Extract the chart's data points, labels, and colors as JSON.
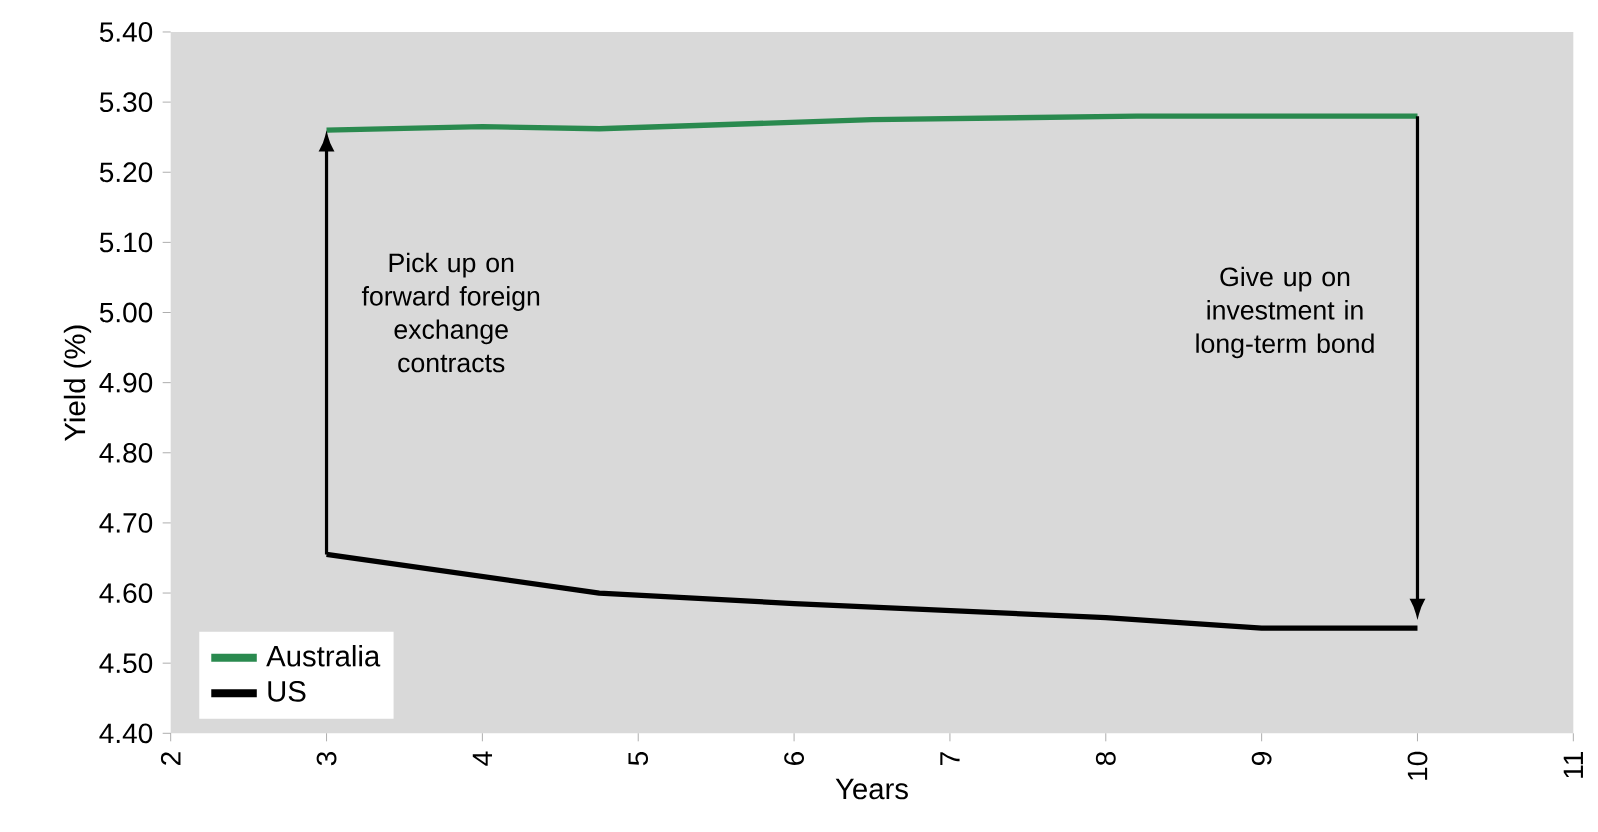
{
  "chart_data": {
    "type": "line",
    "xlabel": "Years",
    "ylabel": "Yield (%)",
    "xlim": [
      2,
      11
    ],
    "xticks": [
      2,
      3,
      4,
      5,
      6,
      7,
      8,
      9,
      10,
      11
    ],
    "ylim": [
      4.4,
      5.4
    ],
    "yticks": [
      {
        "value": 4.4,
        "label": "4.40"
      },
      {
        "value": 4.5,
        "label": "4.50"
      },
      {
        "value": 4.6,
        "label": "4.60"
      },
      {
        "value": 4.7,
        "label": "4.70"
      },
      {
        "value": 4.8,
        "label": "4.80"
      },
      {
        "value": 4.9,
        "label": "4.90"
      },
      {
        "value": 5.0,
        "label": "5.00"
      },
      {
        "value": 5.1,
        "label": "5.10"
      },
      {
        "value": 5.2,
        "label": "5.20"
      },
      {
        "value": 5.3,
        "label": "5.30"
      },
      {
        "value": 5.4,
        "label": "5.40"
      }
    ],
    "grid": false,
    "legend": "bottom left",
    "marker": "none",
    "line_style": "solid",
    "series": [
      {
        "name": "Australia",
        "color": "#2a8a4f",
        "x": [
          3,
          4,
          4.75,
          6.5,
          8.2,
          10
        ],
        "values": [
          5.26,
          5.265,
          5.262,
          5.275,
          5.28,
          5.28
        ]
      },
      {
        "name": "US",
        "color": "#000000",
        "x": [
          3,
          4.75,
          6,
          8,
          9,
          10
        ],
        "values": [
          4.655,
          4.6,
          4.585,
          4.565,
          4.55,
          4.55
        ]
      }
    ],
    "annotations": [
      "Pick up on forward foreign exchange contracts",
      "Give up on investment in long-term bond"
    ]
  }
}
